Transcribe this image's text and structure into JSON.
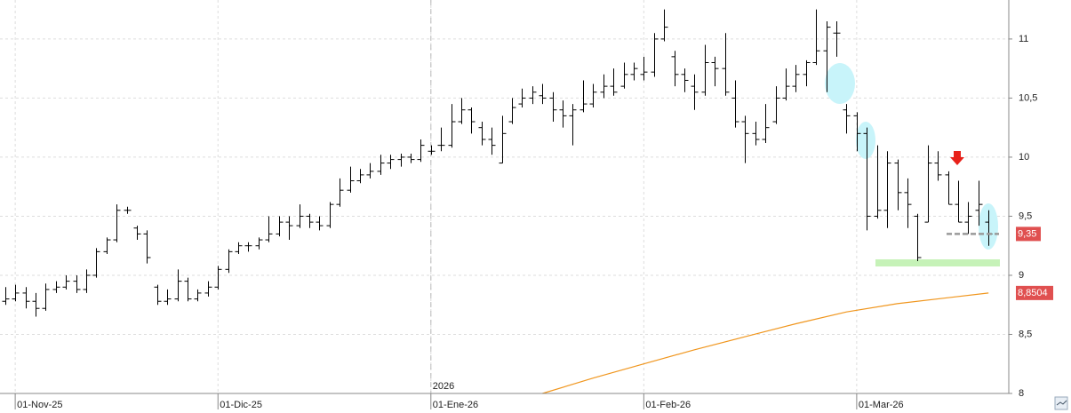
{
  "chart_data": {
    "type": "ohlc",
    "bars": [
      [
        8.78,
        8.9,
        8.75,
        8.8
      ],
      [
        8.8,
        8.92,
        8.78,
        8.85
      ],
      [
        8.85,
        8.9,
        8.72,
        8.78
      ],
      [
        8.78,
        8.85,
        8.65,
        8.72
      ],
      [
        8.72,
        8.93,
        8.7,
        8.88
      ],
      [
        8.88,
        8.95,
        8.85,
        8.9
      ],
      [
        8.9,
        9.0,
        8.88,
        8.95
      ],
      [
        8.95,
        9.0,
        8.85,
        8.88
      ],
      [
        8.88,
        9.05,
        8.85,
        9.0
      ],
      [
        9.0,
        9.23,
        8.98,
        9.2
      ],
      [
        9.2,
        9.32,
        9.18,
        9.3
      ],
      [
        9.3,
        9.6,
        9.28,
        9.55
      ],
      [
        9.55,
        9.58,
        9.52,
        9.55
      ],
      [
        9.4,
        9.42,
        9.3,
        9.35
      ],
      [
        9.35,
        9.38,
        9.1,
        9.15
      ],
      [
        8.9,
        8.92,
        8.75,
        8.78
      ],
      [
        8.78,
        8.88,
        8.75,
        8.8
      ],
      [
        8.8,
        9.05,
        8.78,
        8.95
      ],
      [
        8.95,
        8.98,
        8.78,
        8.8
      ],
      [
        8.8,
        8.88,
        8.78,
        8.85
      ],
      [
        8.85,
        8.95,
        8.82,
        8.9
      ],
      [
        8.9,
        9.08,
        8.88,
        9.05
      ],
      [
        9.05,
        9.22,
        9.02,
        9.2
      ],
      [
        9.2,
        9.28,
        9.18,
        9.25
      ],
      [
        9.25,
        9.28,
        9.2,
        9.25
      ],
      [
        9.25,
        9.32,
        9.22,
        9.3
      ],
      [
        9.3,
        9.5,
        9.28,
        9.35
      ],
      [
        9.35,
        9.5,
        9.33,
        9.45
      ],
      [
        9.45,
        9.5,
        9.3,
        9.42
      ],
      [
        9.42,
        9.6,
        9.4,
        9.5
      ],
      [
        9.5,
        9.52,
        9.4,
        9.45
      ],
      [
        9.45,
        9.5,
        9.38,
        9.42
      ],
      [
        9.42,
        9.62,
        9.4,
        9.6
      ],
      [
        9.6,
        9.82,
        9.58,
        9.72
      ],
      [
        9.72,
        9.92,
        9.7,
        9.8
      ],
      [
        9.8,
        9.9,
        9.78,
        9.85
      ],
      [
        9.85,
        9.95,
        9.82,
        9.88
      ],
      [
        9.88,
        10.02,
        9.85,
        9.95
      ],
      [
        9.95,
        10.02,
        9.9,
        9.98
      ],
      [
        9.98,
        10.03,
        9.92,
        10.0
      ],
      [
        10.0,
        10.03,
        9.95,
        9.98
      ],
      [
        9.98,
        10.15,
        9.96,
        10.1
      ],
      [
        10.05,
        10.1,
        10.02,
        10.05
      ],
      [
        10.1,
        10.25,
        10.05,
        10.1
      ],
      [
        10.1,
        10.45,
        10.08,
        10.3
      ],
      [
        10.3,
        10.5,
        10.28,
        10.4
      ],
      [
        10.4,
        10.42,
        10.2,
        10.3
      ],
      [
        10.25,
        10.3,
        10.1,
        10.15
      ],
      [
        10.15,
        10.25,
        10.02,
        10.1
      ],
      [
        9.95,
        10.35,
        9.95,
        10.2
      ],
      [
        10.3,
        10.5,
        10.28,
        10.42
      ],
      [
        10.45,
        10.58,
        10.42,
        10.5
      ],
      [
        10.5,
        10.6,
        10.45,
        10.55
      ],
      [
        10.52,
        10.62,
        10.45,
        10.5
      ],
      [
        10.5,
        10.55,
        10.3,
        10.4
      ],
      [
        10.4,
        10.48,
        10.25,
        10.35
      ],
      [
        10.35,
        10.45,
        10.1,
        10.4
      ],
      [
        10.4,
        10.65,
        10.38,
        10.45
      ],
      [
        10.45,
        10.62,
        10.42,
        10.55
      ],
      [
        10.55,
        10.7,
        10.5,
        10.6
      ],
      [
        10.6,
        10.75,
        10.52,
        10.55
      ],
      [
        10.6,
        10.8,
        10.58,
        10.7
      ],
      [
        10.7,
        10.8,
        10.65,
        10.75
      ],
      [
        10.7,
        10.85,
        10.65,
        10.72
      ],
      [
        10.72,
        11.05,
        10.68,
        11.0
      ],
      [
        11.0,
        11.25,
        10.98,
        11.1
      ],
      [
        10.85,
        10.9,
        10.6,
        10.7
      ],
      [
        10.7,
        10.75,
        10.55,
        10.65
      ],
      [
        10.6,
        10.7,
        10.4,
        10.55
      ],
      [
        10.55,
        10.95,
        10.52,
        10.8
      ],
      [
        10.8,
        10.85,
        10.6,
        10.75
      ],
      [
        10.75,
        11.05,
        10.52,
        10.55
      ],
      [
        10.5,
        10.65,
        10.25,
        10.3
      ],
      [
        10.3,
        10.35,
        9.95,
        10.2
      ],
      [
        10.2,
        10.3,
        10.1,
        10.15
      ],
      [
        10.15,
        10.45,
        10.12,
        10.25
      ],
      [
        10.3,
        10.6,
        10.28,
        10.5
      ],
      [
        10.5,
        10.75,
        10.48,
        10.6
      ],
      [
        10.6,
        10.78,
        10.55,
        10.7
      ],
      [
        10.7,
        10.82,
        10.6,
        10.8
      ],
      [
        10.8,
        11.25,
        10.78,
        10.9
      ],
      [
        10.9,
        11.15,
        10.55,
        11.1
      ],
      [
        11.05,
        11.15,
        10.85,
        11.05
      ],
      [
        10.4,
        10.45,
        10.2,
        10.35
      ],
      [
        10.35,
        10.38,
        10.05,
        10.2
      ],
      [
        10.2,
        10.25,
        9.38,
        9.5
      ],
      [
        9.5,
        10.1,
        9.48,
        9.55
      ],
      [
        9.55,
        10.05,
        9.4,
        9.95
      ],
      [
        9.95,
        9.98,
        9.55,
        9.7
      ],
      [
        9.7,
        9.82,
        9.4,
        9.6
      ],
      [
        9.5,
        9.52,
        9.12,
        9.15
      ],
      [
        9.45,
        10.1,
        9.45,
        9.95
      ],
      [
        9.95,
        10.05,
        9.8,
        9.85
      ],
      [
        9.85,
        9.88,
        9.6,
        9.6
      ],
      [
        9.6,
        9.8,
        9.45,
        9.45
      ],
      [
        9.45,
        9.62,
        9.35,
        9.5
      ],
      [
        9.55,
        9.8,
        9.42,
        9.6
      ],
      [
        9.45,
        9.55,
        9.25,
        9.35
      ]
    ],
    "bar_color": "#000000",
    "ma": {
      "color": "#f0961e",
      "x": [
        53,
        58,
        63,
        68,
        73,
        78,
        83,
        88,
        93,
        97
      ],
      "values": [
        8.0,
        8.13,
        8.25,
        8.37,
        8.48,
        8.59,
        8.69,
        8.76,
        8.81,
        8.85
      ]
    },
    "xlim": [
      -0.5,
      99
    ],
    "xticks": [
      {
        "value": 1,
        "label": "01-Nov-25"
      },
      {
        "value": 21,
        "label": "01-Dic-25"
      },
      {
        "value": 42,
        "label": "01-Ene-26"
      },
      {
        "value": 63,
        "label": "01-Feb-26"
      },
      {
        "value": 84,
        "label": "01-Mar-26"
      }
    ],
    "year_marker": {
      "value": 42,
      "label": "2026"
    },
    "ylim": [
      8,
      11.33
    ],
    "yticks": [
      8,
      {
        "value": 8.5,
        "label": "8,5"
      },
      9,
      {
        "value": 9.5,
        "label": "9,5"
      },
      10,
      {
        "value": 10.5,
        "label": "10,5"
      },
      11
    ],
    "grid": true,
    "last_price": {
      "value": 9.35,
      "label": "9,35"
    },
    "ma_last": {
      "value": 8.8504,
      "label": "8,8504"
    }
  }
}
